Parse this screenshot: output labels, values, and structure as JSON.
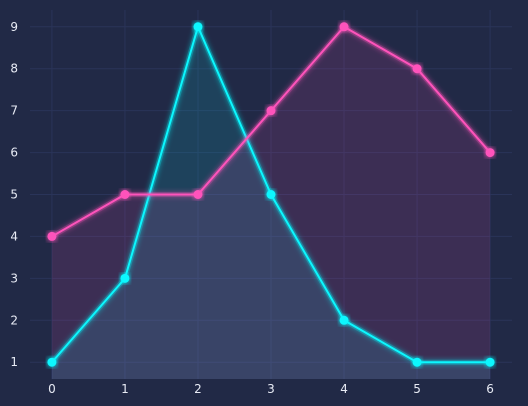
{
  "chart_data": {
    "type": "line",
    "title": "",
    "xlabel": "",
    "ylabel": "",
    "x": [
      0,
      1,
      2,
      3,
      4,
      5,
      6
    ],
    "xlim": [
      -0.3,
      6.3
    ],
    "ylim": [
      0.6,
      9.4
    ],
    "xticks": [
      "0",
      "1",
      "2",
      "3",
      "4",
      "5",
      "6"
    ],
    "yticks": [
      "1",
      "2",
      "3",
      "4",
      "5",
      "6",
      "7",
      "8",
      "9"
    ],
    "grid": true,
    "legend": "none",
    "background_color": "#212946",
    "grid_color": "#2a3459",
    "series": [
      {
        "values": [
          1,
          3,
          9,
          5,
          2,
          1,
          1
        ],
        "color": "#08F7FE",
        "fill": "area"
      },
      {
        "values": [
          4,
          5,
          5,
          7,
          9,
          8,
          6
        ],
        "color": "#FE53BB",
        "fill": "area"
      }
    ]
  }
}
